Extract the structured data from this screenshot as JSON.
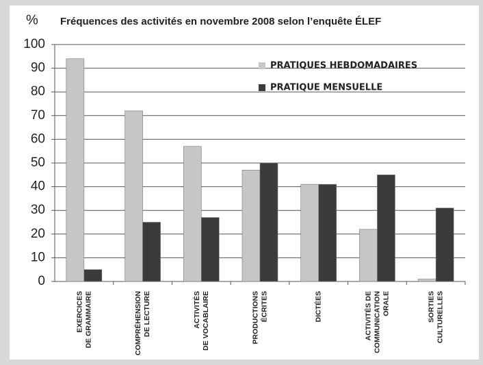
{
  "chart_data": {
    "type": "bar",
    "title": "Fréquences des activités en novembre 2008 selon l’enquête ÉLEF",
    "y_label": "%",
    "categories": [
      "EXERCICES\nDE GRAMMAIRE",
      "COMPRÉHENSION\nDE LECTURE",
      "ACTIVITÉS\nDE VOCABLAIRE",
      "PRODUCTIONS\nÉCRITES",
      "DICTÉES",
      "ACTIVITÉS DE\nCOMMUNICATION\nORALE",
      "SORTIES\nCULTURELLES"
    ],
    "series": [
      {
        "name": "PRATIQUES HEBDOMADAIRES",
        "color": "#c6c6c6",
        "values": [
          94,
          72,
          57,
          47,
          41,
          22,
          1
        ]
      },
      {
        "name": "PRATIQUE MENSUELLE",
        "color": "#3b3b3b",
        "values": [
          5,
          25,
          27,
          50,
          41,
          45,
          31
        ]
      }
    ],
    "ylim": [
      0,
      100
    ],
    "yticks": [
      0,
      10,
      20,
      30,
      40,
      50,
      60,
      70,
      80,
      90,
      100
    ],
    "grid": true,
    "legend": "upper right"
  }
}
